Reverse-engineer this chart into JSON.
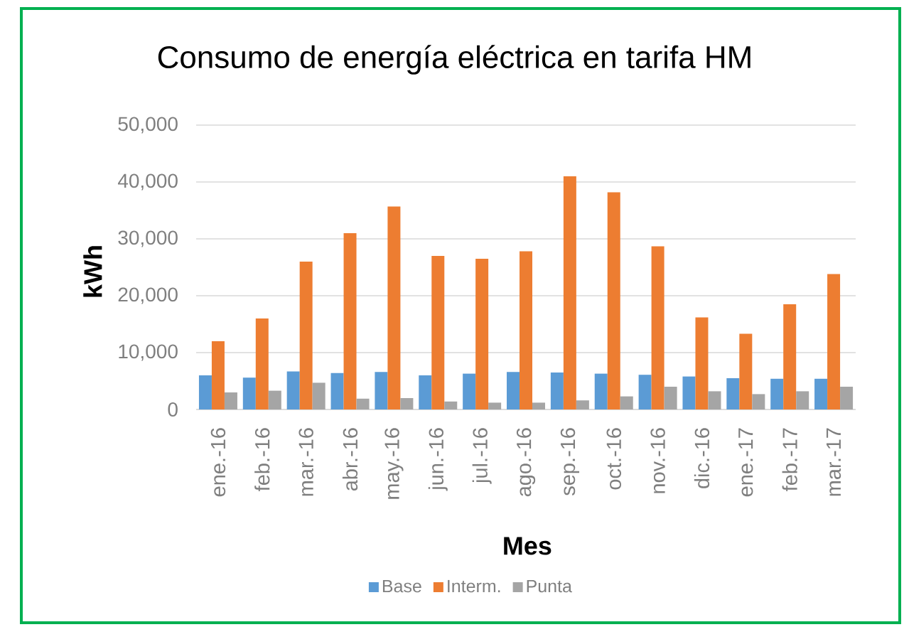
{
  "chart_data": {
    "type": "bar",
    "title": "Consumo de energía eléctrica en tarifa HM",
    "xlabel": "Mes",
    "ylabel": "kWh",
    "categories": [
      "ene.-16",
      "feb.-16",
      "mar.-16",
      "abr.-16",
      "may.-16",
      "jun.-16",
      "jul.-16",
      "ago.-16",
      "sep.-16",
      "oct.-16",
      "nov.-16",
      "dic.-16",
      "ene.-17",
      "feb.-17",
      "mar.-17"
    ],
    "series": [
      {
        "name": "Base",
        "color": "#5b9bd5",
        "values": [
          6000,
          5600,
          6700,
          6400,
          6600,
          6000,
          6300,
          6600,
          6500,
          6300,
          6100,
          5800,
          5500,
          5400,
          5400
        ]
      },
      {
        "name": "Interm.",
        "color": "#ed7d31",
        "values": [
          12000,
          16000,
          26000,
          31000,
          35700,
          27000,
          26500,
          27800,
          41000,
          38200,
          28700,
          16200,
          13300,
          18500,
          23800
        ]
      },
      {
        "name": "Punta",
        "color": "#a5a5a5",
        "values": [
          3000,
          3300,
          4700,
          1900,
          2000,
          1400,
          1200,
          1200,
          1600,
          2300,
          4000,
          3200,
          2700,
          3200,
          4000
        ]
      }
    ],
    "ylim": [
      0,
      50000
    ],
    "yticks": [
      0,
      {
        "value": 10000,
        "label": "10,000"
      },
      {
        "value": 20000,
        "label": "20,000"
      },
      {
        "value": 30000,
        "label": "30,000"
      },
      {
        "value": 40000,
        "label": "40,000"
      },
      {
        "value": 50000,
        "label": "50,000"
      }
    ],
    "grid": "y",
    "legend": "bottom"
  }
}
